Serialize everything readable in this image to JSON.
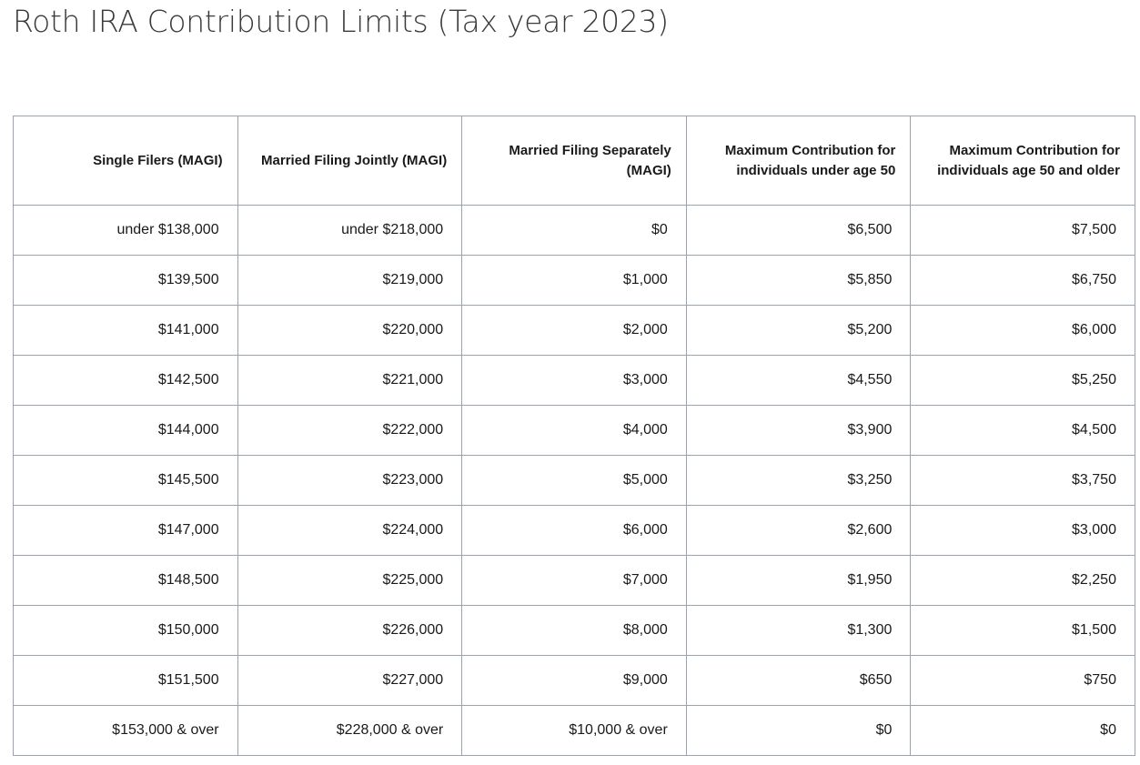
{
  "title": "Roth IRA Contribution Limits (Tax year 2023)",
  "table": {
    "headers": [
      "Single Filers (MAGI)",
      "Married Filing Jointly (MAGI)",
      "Married Filing Separately (MAGI)",
      "Maximum Contribution for individuals under age 50",
      "Maximum Contribution for individuals age 50 and older"
    ],
    "rows": [
      [
        "under $138,000",
        "under $218,000",
        "$0",
        "$6,500",
        "$7,500"
      ],
      [
        "$139,500",
        "$219,000",
        "$1,000",
        "$5,850",
        "$6,750"
      ],
      [
        "$141,000",
        "$220,000",
        "$2,000",
        "$5,200",
        "$6,000"
      ],
      [
        "$142,500",
        "$221,000",
        "$3,000",
        "$4,550",
        "$5,250"
      ],
      [
        "$144,000",
        "$222,000",
        "$4,000",
        "$3,900",
        "$4,500"
      ],
      [
        "$145,500",
        "$223,000",
        "$5,000",
        "$3,250",
        "$3,750"
      ],
      [
        "$147,000",
        "$224,000",
        "$6,000",
        "$2,600",
        "$3,000"
      ],
      [
        "$148,500",
        "$225,000",
        "$7,000",
        "$1,950",
        "$2,250"
      ],
      [
        "$150,000",
        "$226,000",
        "$8,000",
        "$1,300",
        "$1,500"
      ],
      [
        "$151,500",
        "$227,000",
        "$9,000",
        "$650",
        "$750"
      ],
      [
        "$153,000 & over",
        "$228,000 & over",
        "$10,000 & over",
        "$0",
        "$0"
      ]
    ]
  }
}
